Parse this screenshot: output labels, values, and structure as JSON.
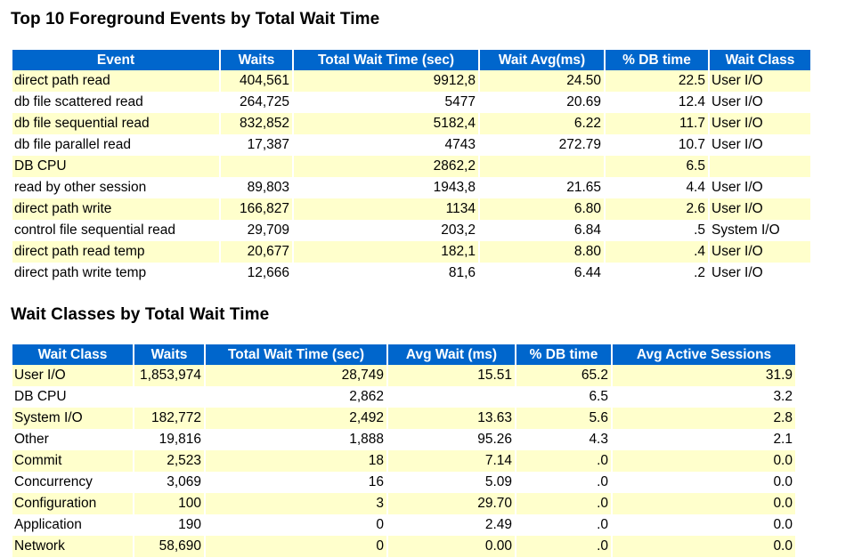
{
  "section1": {
    "title": "Top 10 Foreground Events by Total Wait Time",
    "columns": [
      "Event",
      "Waits",
      "Total Wait Time (sec)",
      "Wait Avg(ms)",
      "% DB time",
      "Wait Class"
    ],
    "rows": [
      [
        "direct path read",
        "404,561",
        "9912,8",
        "24.50",
        "22.5",
        "User I/O"
      ],
      [
        "db file scattered read",
        "264,725",
        "5477",
        "20.69",
        "12.4",
        "User I/O"
      ],
      [
        "db file sequential read",
        "832,852",
        "5182,4",
        "6.22",
        "11.7",
        "User I/O"
      ],
      [
        "db file parallel read",
        "17,387",
        "4743",
        "272.79",
        "10.7",
        "User I/O"
      ],
      [
        "DB CPU",
        "",
        "2862,2",
        "",
        "6.5",
        ""
      ],
      [
        "read by other session",
        "89,803",
        "1943,8",
        "21.65",
        "4.4",
        "User I/O"
      ],
      [
        "direct path write",
        "166,827",
        "1134",
        "6.80",
        "2.6",
        "User I/O"
      ],
      [
        "control file sequential read",
        "29,709",
        "203,2",
        "6.84",
        ".5",
        "System I/O"
      ],
      [
        "direct path read temp",
        "20,677",
        "182,1",
        "8.80",
        ".4",
        "User I/O"
      ],
      [
        "direct path write temp",
        "12,666",
        "81,6",
        "6.44",
        ".2",
        "User I/O"
      ]
    ]
  },
  "section2": {
    "title": "Wait Classes by Total Wait Time",
    "columns": [
      "Wait Class",
      "Waits",
      "Total Wait Time (sec)",
      "Avg Wait (ms)",
      "% DB time",
      "Avg Active Sessions"
    ],
    "rows": [
      [
        "User I/O",
        "1,853,974",
        "28,749",
        "15.51",
        "65.2",
        "31.9"
      ],
      [
        "DB CPU",
        "",
        "2,862",
        "",
        "6.5",
        "3.2"
      ],
      [
        "System I/O",
        "182,772",
        "2,492",
        "13.63",
        "5.6",
        "2.8"
      ],
      [
        "Other",
        "19,816",
        "1,888",
        "95.26",
        "4.3",
        "2.1"
      ],
      [
        "Commit",
        "2,523",
        "18",
        "7.14",
        ".0",
        "0.0"
      ],
      [
        "Concurrency",
        "3,069",
        "16",
        "5.09",
        ".0",
        "0.0"
      ],
      [
        "Configuration",
        "100",
        "3",
        "29.70",
        ".0",
        "0.0"
      ],
      [
        "Application",
        "190",
        "0",
        "2.49",
        ".0",
        "0.0"
      ],
      [
        "Network",
        "58,690",
        "0",
        "0.00",
        ".0",
        "0.0"
      ]
    ]
  },
  "colors": {
    "header_bg": "#0066CC",
    "header_text": "#FFFFFF",
    "odd_row_bg": "#FFFFCC",
    "even_row_bg": "#FFFFFF"
  }
}
